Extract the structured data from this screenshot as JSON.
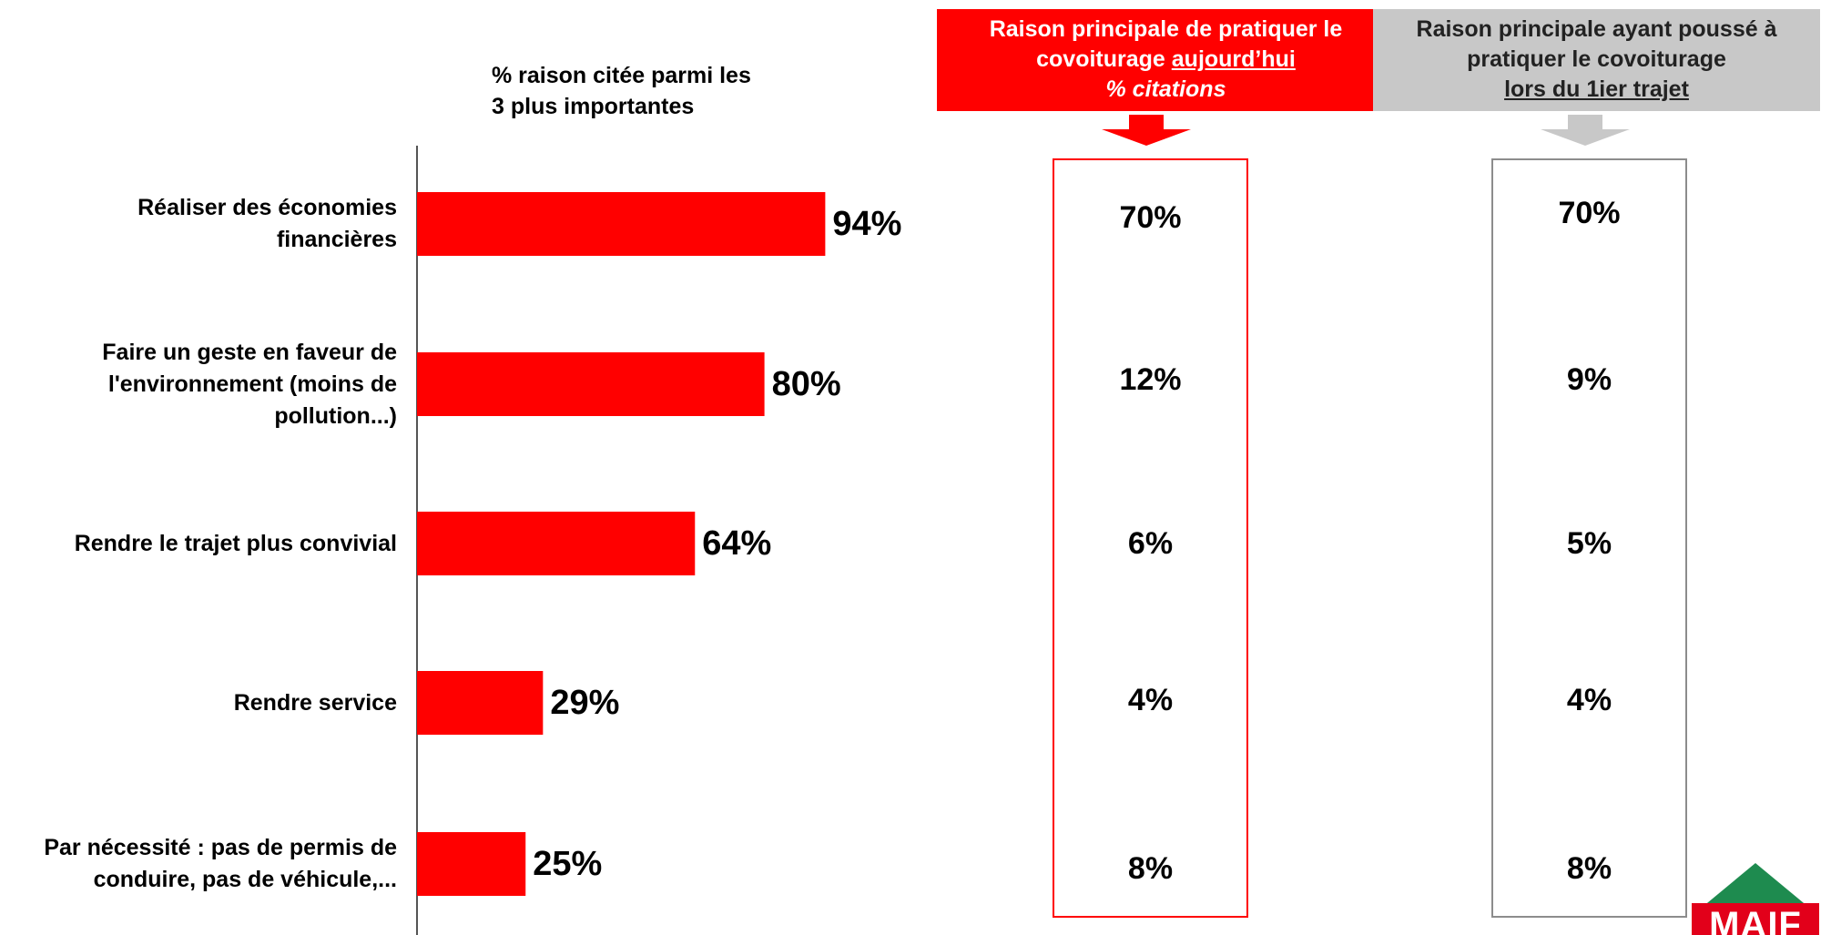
{
  "subtitle": {
    "line1": "% raison citée parmi les",
    "line2": "3 plus importantes"
  },
  "header_today": {
    "line1": "Raison principale de pratiquer le",
    "line2a": "covoiturage ",
    "line2b": "aujourd’hui",
    "line3": "% citations"
  },
  "header_first": {
    "line1": "Raison principale ayant poussé à",
    "line2": "pratiquer le covoiturage",
    "line3": "lors du 1ier trajet"
  },
  "rows": [
    {
      "label1": "Réaliser des économies",
      "label2": "financières",
      "label3": "",
      "pct_text": "94%",
      "today": "70%",
      "first": "70%"
    },
    {
      "label1": "Faire un geste en faveur de",
      "label2": "l'environnement (moins de",
      "label3": "pollution...)",
      "pct_text": "80%",
      "today": "12%",
      "first": "9%"
    },
    {
      "label1": "Rendre le trajet plus convivial",
      "label2": "",
      "label3": "",
      "pct_text": "64%",
      "today": "6%",
      "first": "5%"
    },
    {
      "label1": "Rendre service",
      "label2": "",
      "label3": "",
      "pct_text": "29%",
      "today": "4%",
      "first": "4%"
    },
    {
      "label1": "Par nécessité : pas de permis de",
      "label2": "conduire, pas de véhicule,...",
      "label3": "",
      "pct_text": "25%",
      "today": "8%",
      "first": "8%"
    }
  ],
  "logo": {
    "text": "MAIF",
    "color": "#e2001a"
  },
  "colors": {
    "bar": "#ff0000",
    "header_red": "#ff0000",
    "header_gray": "#c8c8c8",
    "box_gray": "#8c8c8c"
  },
  "chart_data": {
    "type": "bar",
    "orientation": "horizontal",
    "categories": [
      "Réaliser des économies financières",
      "Faire un geste en faveur de l'environnement (moins de pollution...)",
      "Rendre le trajet plus convivial",
      "Rendre service",
      "Par nécessité : pas de permis de conduire, pas de véhicule,..."
    ],
    "values": [
      94,
      80,
      64,
      29,
      25
    ],
    "xlim": [
      0,
      100
    ],
    "grid": false,
    "extra_columns": [
      {
        "values": [
          70,
          12,
          6,
          4,
          8
        ]
      },
      {
        "values": [
          70,
          9,
          5,
          4,
          8
        ]
      }
    ]
  }
}
